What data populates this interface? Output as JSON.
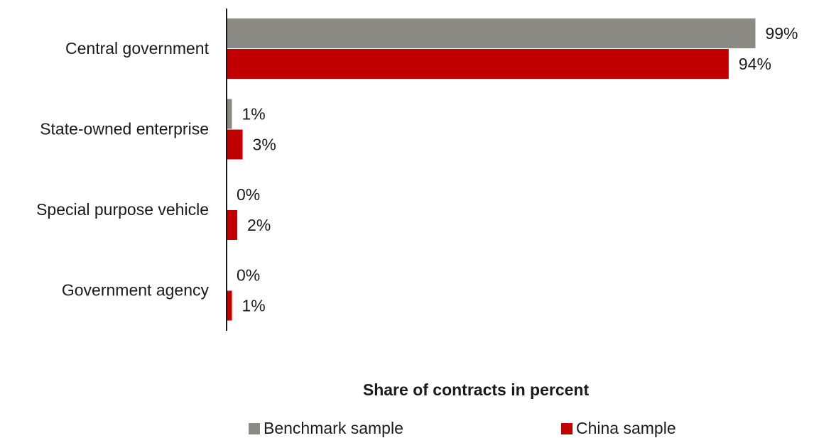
{
  "chart_data": {
    "type": "bar",
    "orientation": "horizontal",
    "categories": [
      "Central government",
      "State-owned enterprise",
      "Special purpose vehicle",
      "Government agency"
    ],
    "series": [
      {
        "name": "Benchmark sample",
        "color": "#8c8a85",
        "values": [
          99,
          1,
          0,
          0
        ],
        "labels": [
          "99%",
          "1%",
          "0%",
          "0%"
        ]
      },
      {
        "name": "China sample",
        "color": "#c00000",
        "values": [
          94,
          3,
          2,
          1
        ],
        "labels": [
          "94%",
          "3%",
          "2%",
          "1%"
        ]
      }
    ],
    "xlabel": "Share of contracts in percent",
    "ylabel": "",
    "xlim": [
      0,
      100
    ],
    "grid": false,
    "legend_position": "bottom"
  }
}
